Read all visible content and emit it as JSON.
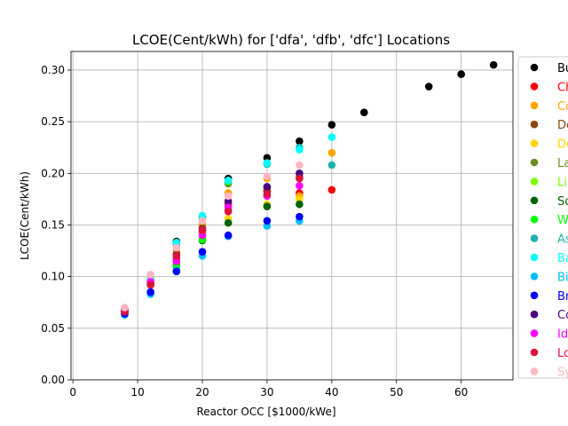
{
  "chart_data": {
    "type": "scatter",
    "title": "LCOE(Cent/kWh) for ['dfa', 'dfb', 'dfc'] Locations",
    "xlabel": "Reactor OCC [$1000/kWe]",
    "ylabel": "LCOE(Cent/kWh)",
    "xlim": [
      -0.3,
      68
    ],
    "ylim": [
      0.0,
      0.318
    ],
    "xticks": [
      0,
      10,
      20,
      30,
      40,
      50,
      60
    ],
    "yticks": [
      0.0,
      0.05,
      0.1,
      0.15,
      0.2,
      0.25,
      0.3
    ],
    "grid": true,
    "legend_placement": "right (outside, clipped)",
    "series": [
      {
        "name": "Bu",
        "color": "#000000",
        "points": [
          [
            8,
            0.068
          ],
          [
            12,
            0.097
          ],
          [
            16,
            0.134
          ],
          [
            20,
            0.158
          ],
          [
            24,
            0.195
          ],
          [
            30,
            0.215
          ],
          [
            35,
            0.231
          ],
          [
            40,
            0.247
          ],
          [
            45,
            0.259
          ],
          [
            55,
            0.284
          ],
          [
            60,
            0.296
          ],
          [
            65,
            0.305
          ]
        ]
      },
      {
        "name": "Ch",
        "color": "#ff0000",
        "points": [
          [
            8,
            0.066
          ],
          [
            12,
            0.095
          ],
          [
            16,
            0.118
          ],
          [
            20,
            0.143
          ],
          [
            24,
            0.164
          ],
          [
            30,
            0.183
          ],
          [
            35,
            0.181
          ],
          [
            40,
            0.184
          ]
        ]
      },
      {
        "name": "Co",
        "color": "#ffa500",
        "points": [
          [
            8,
            0.068
          ],
          [
            12,
            0.098
          ],
          [
            16,
            0.125
          ],
          [
            20,
            0.15
          ],
          [
            24,
            0.181
          ],
          [
            30,
            0.195
          ],
          [
            35,
            0.178
          ],
          [
            40,
            0.22
          ]
        ]
      },
      {
        "name": "De",
        "color": "#8b4513",
        "points": [
          [
            8,
            0.067
          ],
          [
            12,
            0.096
          ],
          [
            16,
            0.122
          ],
          [
            20,
            0.147
          ],
          [
            24,
            0.17
          ],
          [
            30,
            0.185
          ],
          [
            35,
            0.196
          ]
        ]
      },
      {
        "name": "De",
        "color": "#ffd700",
        "points": [
          [
            8,
            0.067
          ],
          [
            12,
            0.097
          ],
          [
            16,
            0.112
          ],
          [
            20,
            0.141
          ],
          [
            24,
            0.156
          ],
          [
            30,
            0.17
          ],
          [
            35,
            0.175
          ]
        ]
      },
      {
        "name": "La",
        "color": "#6b8e23",
        "points": [
          [
            8,
            0.066
          ],
          [
            12,
            0.093
          ],
          [
            16,
            0.112
          ],
          [
            20,
            0.137
          ],
          [
            24,
            0.19
          ],
          [
            30,
            0.168
          ]
        ]
      },
      {
        "name": "Li",
        "color": "#7cfc00",
        "points": [
          [
            8,
            0.066
          ],
          [
            12,
            0.093
          ],
          [
            16,
            0.111
          ],
          [
            20,
            0.139
          ],
          [
            24,
            0.152
          ],
          [
            30,
            0.209
          ]
        ]
      },
      {
        "name": "So",
        "color": "#006400",
        "points": [
          [
            8,
            0.066
          ],
          [
            12,
            0.092
          ],
          [
            16,
            0.11
          ],
          [
            20,
            0.135
          ],
          [
            24,
            0.152
          ],
          [
            30,
            0.168
          ],
          [
            35,
            0.17
          ]
        ]
      },
      {
        "name": "W",
        "color": "#00ff00",
        "points": [
          [
            8,
            0.067
          ],
          [
            12,
            0.094
          ],
          [
            16,
            0.109
          ],
          [
            20,
            0.136
          ],
          [
            24,
            0.192
          ],
          [
            30,
            0.21
          ]
        ]
      },
      {
        "name": "As",
        "color": "#20b2aa",
        "points": [
          [
            8,
            0.066
          ],
          [
            12,
            0.094
          ],
          [
            16,
            0.131
          ],
          [
            20,
            0.157
          ],
          [
            24,
            0.193
          ],
          [
            30,
            0.209
          ],
          [
            35,
            0.225
          ],
          [
            40,
            0.208
          ]
        ]
      },
      {
        "name": "Ba",
        "color": "#00ffff",
        "points": [
          [
            8,
            0.068
          ],
          [
            12,
            0.097
          ],
          [
            16,
            0.133
          ],
          [
            20,
            0.159
          ],
          [
            24,
            0.193
          ],
          [
            30,
            0.21
          ],
          [
            35,
            0.223
          ],
          [
            40,
            0.235
          ]
        ]
      },
      {
        "name": "Bi",
        "color": "#00bfff",
        "points": [
          [
            8,
            0.063
          ],
          [
            12,
            0.083
          ],
          [
            16,
            0.106
          ],
          [
            20,
            0.12
          ],
          [
            24,
            0.139
          ],
          [
            30,
            0.149
          ],
          [
            35,
            0.154
          ]
        ]
      },
      {
        "name": "Br",
        "color": "#0000ff",
        "points": [
          [
            8,
            0.064
          ],
          [
            12,
            0.085
          ],
          [
            16,
            0.105
          ],
          [
            20,
            0.124
          ],
          [
            24,
            0.14
          ],
          [
            30,
            0.154
          ],
          [
            35,
            0.158
          ]
        ]
      },
      {
        "name": "Co",
        "color": "#4b0082",
        "points": [
          [
            8,
            0.066
          ],
          [
            12,
            0.093
          ],
          [
            16,
            0.115
          ],
          [
            20,
            0.145
          ],
          [
            24,
            0.173
          ],
          [
            30,
            0.187
          ],
          [
            35,
            0.2
          ]
        ]
      },
      {
        "name": "Id",
        "color": "#ff00ff",
        "points": [
          [
            8,
            0.067
          ],
          [
            12,
            0.095
          ],
          [
            16,
            0.115
          ],
          [
            20,
            0.14
          ],
          [
            24,
            0.167
          ],
          [
            30,
            0.178
          ],
          [
            35,
            0.188
          ]
        ]
      },
      {
        "name": "Lo",
        "color": "#dc143c",
        "points": [
          [
            8,
            0.066
          ],
          [
            12,
            0.092
          ],
          [
            16,
            0.12
          ],
          [
            20,
            0.145
          ],
          [
            24,
            0.163
          ],
          [
            30,
            0.18
          ],
          [
            35,
            0.195
          ]
        ]
      },
      {
        "name": "Sy",
        "color": "#ffb6c1",
        "points": [
          [
            8,
            0.07
          ],
          [
            12,
            0.102
          ],
          [
            16,
            0.128
          ],
          [
            20,
            0.154
          ],
          [
            24,
            0.178
          ],
          [
            30,
            0.197
          ],
          [
            35,
            0.208
          ]
        ]
      }
    ]
  }
}
